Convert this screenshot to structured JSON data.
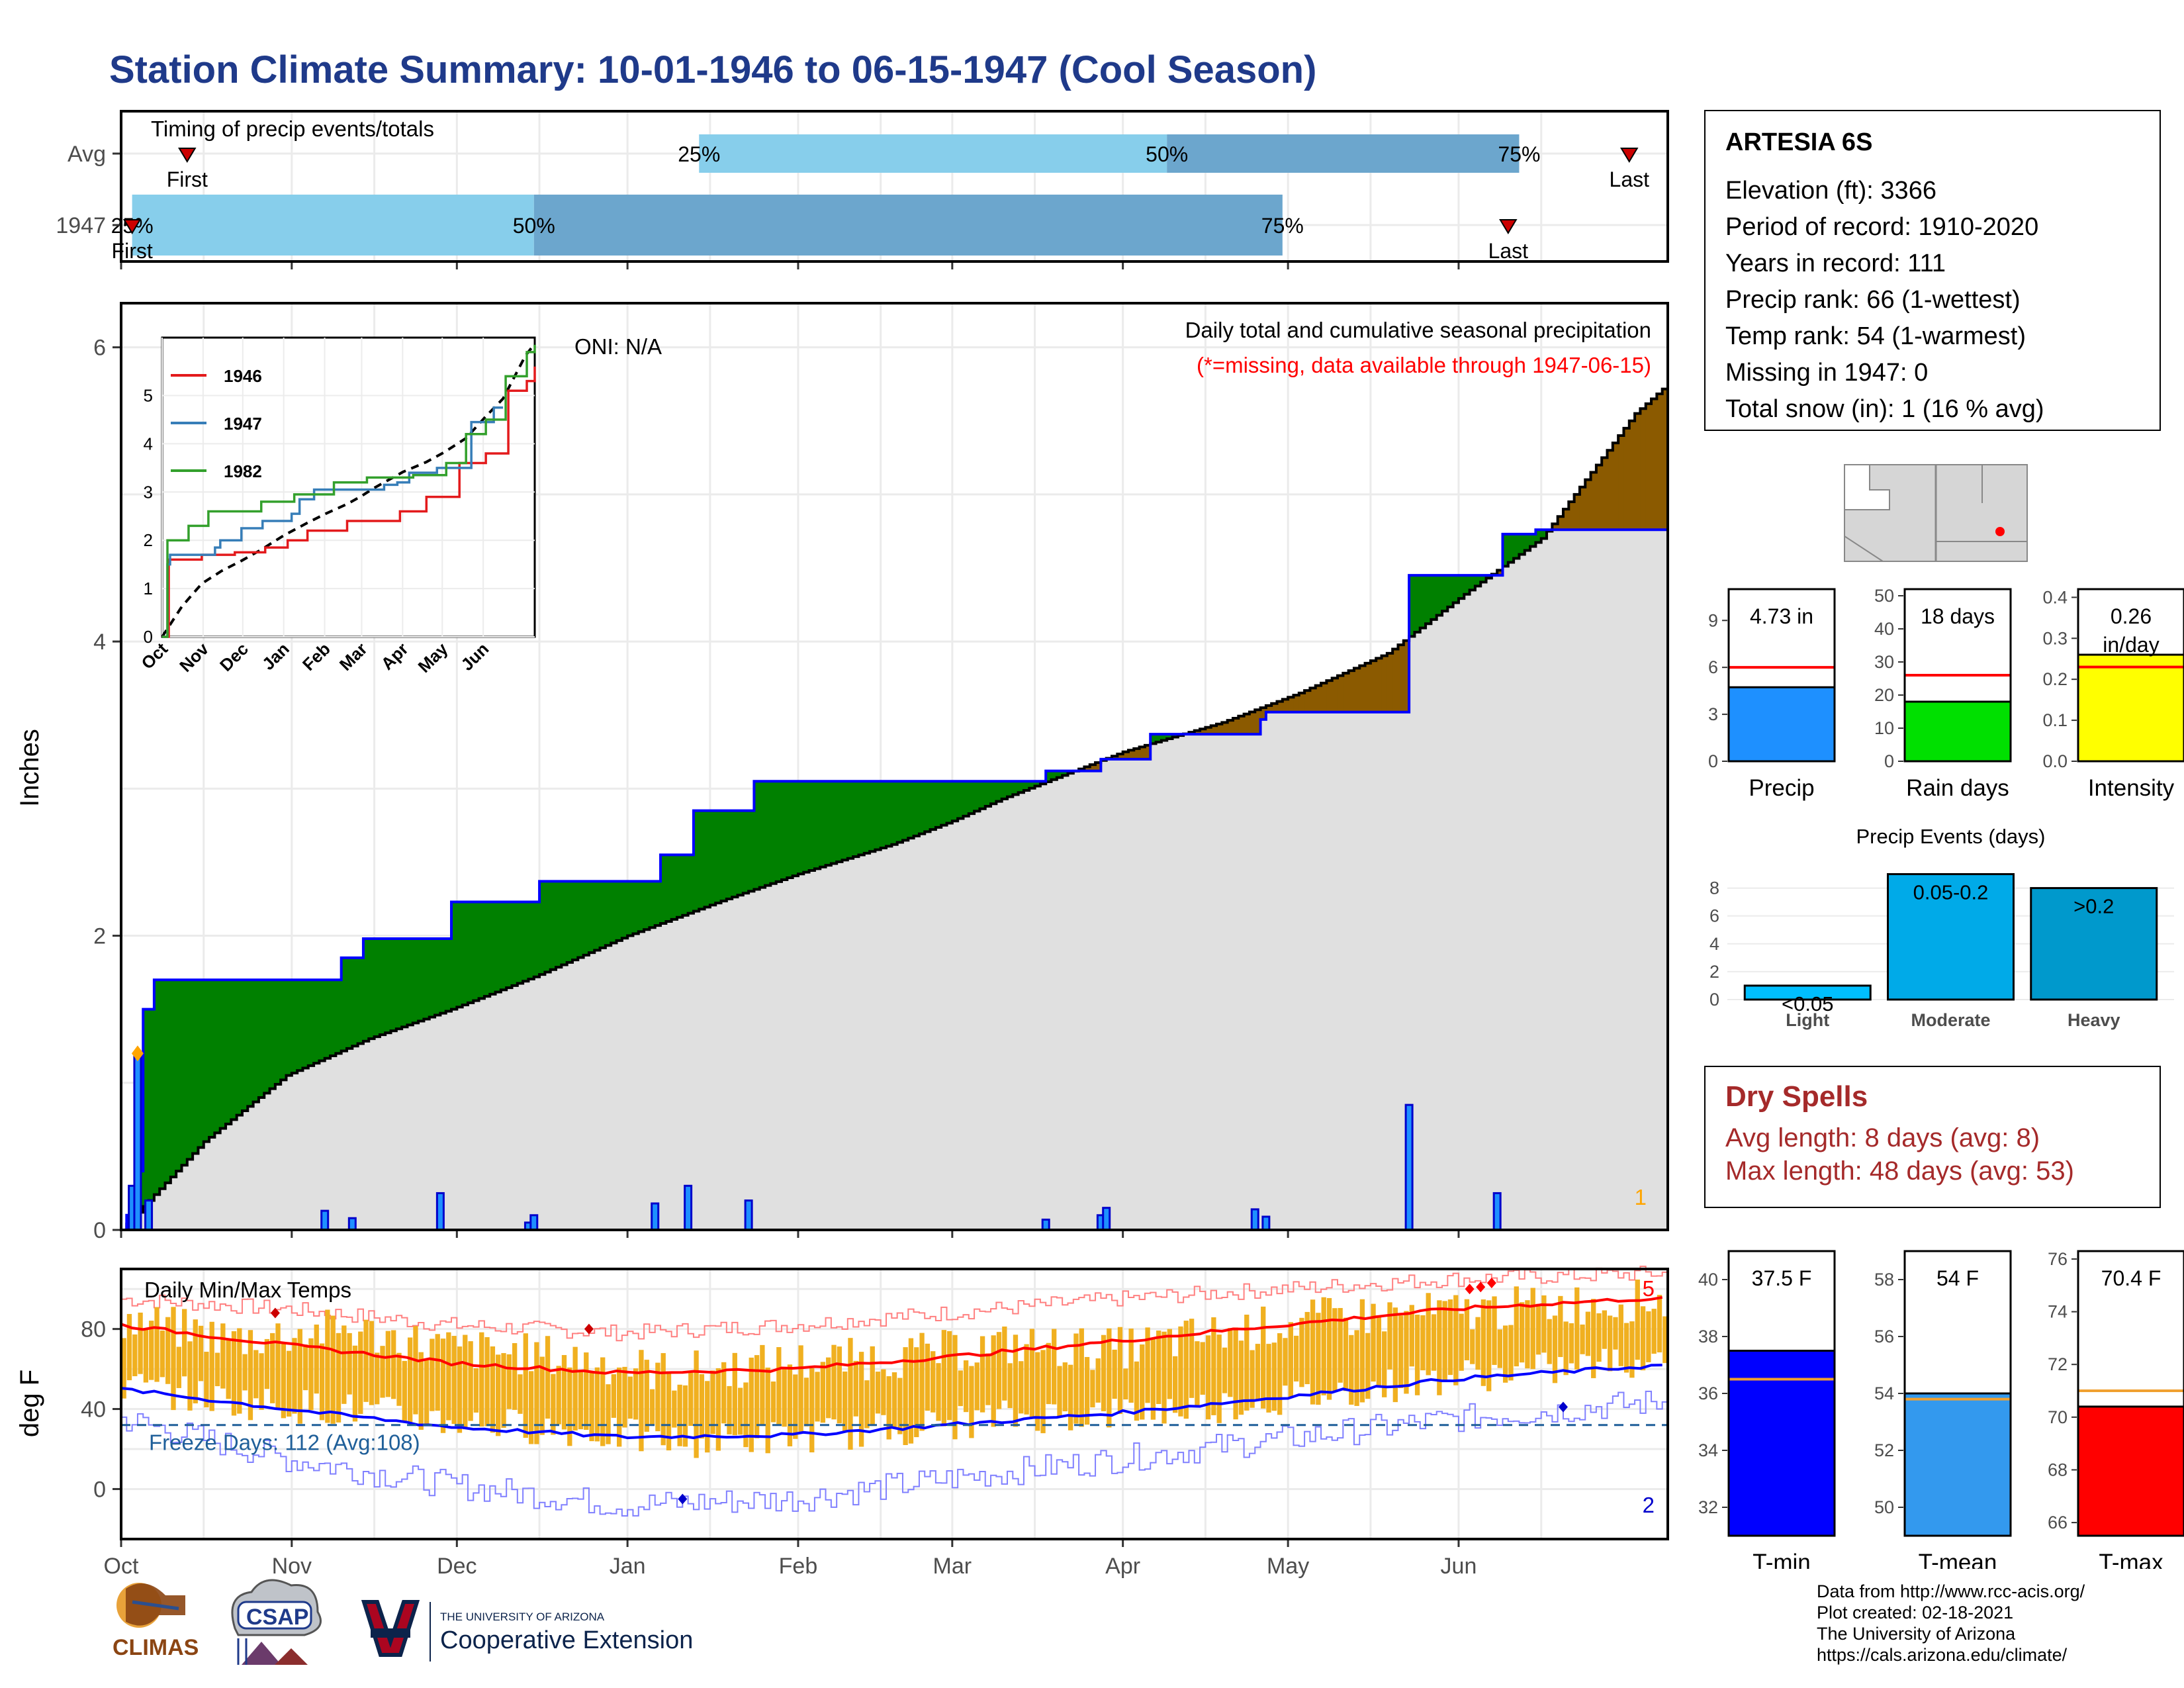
{
  "title": "Station Climate Summary: 10-01-1946 to 06-15-1947 (Cool Season)",
  "colors": {
    "title": "#1f3a8a",
    "accent_red": "#e31a1c",
    "precip_blue": "#1e90ff",
    "rain_green": "#00e000",
    "intensity_yellow": "#ffff00",
    "surplus_green": "#008000",
    "deficit_brown": "#8b5a00",
    "tmin_blue": "#0000ff",
    "tmean_blue": "#3399ee",
    "tmax_red": "#ff0000",
    "range_orange": "#f0b020"
  },
  "station": {
    "name": "ARTESIA 6S",
    "lines": [
      "Elevation (ft): 3366",
      "Period of record: 1910-2020",
      "Years in record: 111",
      "Precip rank: 66 (1-wettest)",
      "Temp rank: 54 (1-warmest)",
      "Missing in 1947: 0",
      "Total snow (in): 1 (16 % avg)"
    ]
  },
  "dry_spells": {
    "heading": "Dry Spells",
    "avg": "Avg length: 8 days (avg: 8)",
    "max": "Max length: 48 days (avg: 53)"
  },
  "credits": [
    "Data from http://www.rcc-acis.org/",
    "Plot created: 02-18-2021",
    "The University of Arizona",
    "https://cals.arizona.edu/climate/"
  ],
  "logos": {
    "climas": "CLIMAS",
    "csap": "CSAP",
    "ua_top": "THE UNIVERSITY OF ARIZONA",
    "ua_bottom": "Cooperative Extension"
  },
  "chart_data": [
    {
      "type": "bar",
      "id": "timing",
      "title": "Timing of precip events/totals",
      "rows": [
        {
          "label": "Avg",
          "p25": "25%",
          "p50": "50%",
          "p75": "75%",
          "first": "First",
          "last": "Last",
          "p25_day": 105,
          "p50_day": 190,
          "p75_day": 254,
          "first_day": 12,
          "last_day": 274
        },
        {
          "label": "1947",
          "p25": "25%",
          "p50": "50%",
          "p75": "75%",
          "first": "First",
          "last": "Last",
          "p25_day": 2,
          "p50_day": 75,
          "p75_day": 211,
          "first_day": 2,
          "last_day": 252
        }
      ]
    },
    {
      "type": "area",
      "id": "precip",
      "ylabel": "Inches",
      "ylim": [
        0,
        6.3
      ],
      "yticks": [
        "0",
        "2",
        "4",
        "6"
      ],
      "xticks": [
        "Oct",
        "Nov",
        "Dec",
        "Jan",
        "Feb",
        "Mar",
        "Apr",
        "May",
        "Jun"
      ],
      "annotation_title": "Daily total and cumulative seasonal precipitation",
      "annotation_missing": "(*=missing, data available through 1947-06-15)",
      "oni": "ONI: N/A",
      "corner_count": "1",
      "observed_cumulative_steps": [
        [
          0,
          0.0
        ],
        [
          1,
          0.1
        ],
        [
          3,
          0.4
        ],
        [
          4,
          1.5
        ],
        [
          6,
          1.7
        ],
        [
          40,
          1.85
        ],
        [
          44,
          1.98
        ],
        [
          60,
          2.23
        ],
        [
          76,
          2.37
        ],
        [
          98,
          2.55
        ],
        [
          104,
          2.85
        ],
        [
          115,
          3.05
        ],
        [
          168,
          3.12
        ],
        [
          178,
          3.2
        ],
        [
          187,
          3.37
        ],
        [
          207,
          3.47
        ],
        [
          208,
          3.52
        ],
        [
          234,
          4.45
        ],
        [
          251,
          4.73
        ],
        [
          257,
          4.76
        ],
        [
          258,
          4.76
        ]
      ],
      "normal_cumulative": [
        [
          0,
          0.0
        ],
        [
          15,
          0.6
        ],
        [
          30,
          1.05
        ],
        [
          45,
          1.3
        ],
        [
          60,
          1.5
        ],
        [
          75,
          1.72
        ],
        [
          92,
          2.0
        ],
        [
          110,
          2.25
        ],
        [
          123,
          2.42
        ],
        [
          140,
          2.62
        ],
        [
          151,
          2.78
        ],
        [
          160,
          2.93
        ],
        [
          182,
          3.25
        ],
        [
          200,
          3.45
        ],
        [
          214,
          3.65
        ],
        [
          230,
          3.92
        ],
        [
          245,
          4.35
        ],
        [
          258,
          4.7
        ],
        [
          275,
          5.55
        ],
        [
          281,
          5.75
        ]
      ],
      "daily_bars": [
        [
          2,
          0.3
        ],
        [
          3,
          1.2
        ],
        [
          5,
          0.2
        ],
        [
          37,
          0.13
        ],
        [
          42,
          0.08
        ],
        [
          58,
          0.25
        ],
        [
          74,
          0.05
        ],
        [
          75,
          0.1
        ],
        [
          97,
          0.18
        ],
        [
          103,
          0.3
        ],
        [
          114,
          0.2
        ],
        [
          168,
          0.07
        ],
        [
          178,
          0.1
        ],
        [
          179,
          0.15
        ],
        [
          206,
          0.14
        ],
        [
          208,
          0.09
        ],
        [
          234,
          0.85
        ],
        [
          250,
          0.25
        ]
      ],
      "inset": {
        "yticks": [
          "0",
          "1",
          "2",
          "3",
          "4",
          "5"
        ],
        "xticks": [
          "Oct",
          "Nov",
          "Dec",
          "Jan",
          "Feb",
          "Mar",
          "Apr",
          "May",
          "Jun"
        ],
        "series": [
          {
            "name": "1946",
            "color": "#e31a1c",
            "values": [
              [
                0,
                0
              ],
              [
                5,
                1.6
              ],
              [
                30,
                1.7
              ],
              [
                55,
                1.75
              ],
              [
                78,
                1.85
              ],
              [
                95,
                2.0
              ],
              [
                110,
                2.2
              ],
              [
                140,
                2.4
              ],
              [
                165,
                2.4
              ],
              [
                180,
                2.6
              ],
              [
                200,
                2.9
              ],
              [
                225,
                3.6
              ],
              [
                245,
                3.8
              ],
              [
                262,
                5.1
              ],
              [
                276,
                5.3
              ],
              [
                282,
                5.6
              ]
            ]
          },
          {
            "name": "1947",
            "color": "#377eb8",
            "values": [
              [
                0,
                0
              ],
              [
                4,
                1.5
              ],
              [
                6,
                1.7
              ],
              [
                40,
                1.85
              ],
              [
                44,
                2.0
              ],
              [
                60,
                2.25
              ],
              [
                76,
                2.4
              ],
              [
                98,
                2.55
              ],
              [
                104,
                2.85
              ],
              [
                115,
                3.05
              ],
              [
                168,
                3.15
              ],
              [
                178,
                3.2
              ],
              [
                187,
                3.4
              ],
              [
                208,
                3.5
              ],
              [
                234,
                4.45
              ],
              [
                251,
                4.75
              ],
              [
                258,
                4.75
              ]
            ]
          },
          {
            "name": "1982",
            "color": "#33a02c",
            "values": [
              [
                0,
                0
              ],
              [
                4,
                2.0
              ],
              [
                20,
                2.3
              ],
              [
                35,
                2.6
              ],
              [
                75,
                2.8
              ],
              [
                100,
                2.95
              ],
              [
                130,
                3.2
              ],
              [
                155,
                3.3
              ],
              [
                190,
                3.35
              ],
              [
                215,
                3.6
              ],
              [
                230,
                4.2
              ],
              [
                245,
                4.5
              ],
              [
                260,
                5.4
              ],
              [
                276,
                5.9
              ],
              [
                282,
                6.05
              ]
            ]
          }
        ]
      }
    },
    {
      "type": "line",
      "id": "temps",
      "title": "Daily Min/Max Temps",
      "ylabel": "deg F",
      "ylim": [
        -25,
        110
      ],
      "yticks": [
        "0",
        "40",
        "80"
      ],
      "xticks": [
        "Oct",
        "Nov",
        "Dec",
        "Jan",
        "Feb",
        "Mar",
        "Apr",
        "May",
        "Jun"
      ],
      "freeze_text": "Freeze Days: 112 (Avg:108)",
      "freeze_line": 32,
      "count_high": "5",
      "count_low": "2",
      "normal_max": [
        [
          0,
          82
        ],
        [
          30,
          72
        ],
        [
          60,
          63
        ],
        [
          91,
          58
        ],
        [
          122,
          60
        ],
        [
          150,
          66
        ],
        [
          181,
          74
        ],
        [
          211,
          82
        ],
        [
          242,
          90
        ],
        [
          275,
          95
        ],
        [
          281,
          95
        ]
      ],
      "normal_min": [
        [
          0,
          50
        ],
        [
          30,
          40
        ],
        [
          60,
          31
        ],
        [
          91,
          26
        ],
        [
          122,
          27
        ],
        [
          150,
          32
        ],
        [
          181,
          38
        ],
        [
          211,
          46
        ],
        [
          242,
          55
        ],
        [
          275,
          61
        ],
        [
          281,
          62
        ]
      ],
      "record_max": [
        [
          0,
          95
        ],
        [
          30,
          90
        ],
        [
          60,
          82
        ],
        [
          91,
          78
        ],
        [
          122,
          82
        ],
        [
          150,
          88
        ],
        [
          181,
          95
        ],
        [
          211,
          100
        ],
        [
          242,
          105
        ],
        [
          281,
          108
        ]
      ],
      "record_min": [
        [
          0,
          35
        ],
        [
          30,
          15
        ],
        [
          60,
          2
        ],
        [
          91,
          -8
        ],
        [
          122,
          -5
        ],
        [
          150,
          5
        ],
        [
          181,
          15
        ],
        [
          211,
          25
        ],
        [
          242,
          35
        ],
        [
          281,
          44
        ]
      ],
      "obs_max_anchor": [
        [
          0,
          85
        ],
        [
          20,
          75
        ],
        [
          40,
          80
        ],
        [
          60,
          70
        ],
        [
          80,
          66
        ],
        [
          100,
          58
        ],
        [
          120,
          63
        ],
        [
          140,
          66
        ],
        [
          160,
          72
        ],
        [
          180,
          70
        ],
        [
          200,
          78
        ],
        [
          220,
          86
        ],
        [
          240,
          88
        ],
        [
          260,
          92
        ],
        [
          281,
          95
        ]
      ],
      "obs_min_anchor": [
        [
          0,
          52
        ],
        [
          20,
          44
        ],
        [
          40,
          40
        ],
        [
          60,
          34
        ],
        [
          80,
          30
        ],
        [
          100,
          24
        ],
        [
          120,
          26
        ],
        [
          140,
          30
        ],
        [
          160,
          36
        ],
        [
          180,
          38
        ],
        [
          200,
          42
        ],
        [
          220,
          48
        ],
        [
          240,
          56
        ],
        [
          260,
          60
        ],
        [
          281,
          66
        ]
      ]
    },
    {
      "type": "bar",
      "id": "precip_summary",
      "panels": [
        {
          "label": "Precip",
          "value": 4.73,
          "value_label": "4.73 in",
          "avg": 6.0,
          "color": "#1e90ff",
          "yticks": [
            "0",
            "3",
            "6",
            "9"
          ],
          "ymax": 11
        },
        {
          "label": "Rain days",
          "value": 18,
          "value_label": "18 days",
          "avg": 26,
          "color": "#00e000",
          "yticks": [
            "0",
            "10",
            "20",
            "30",
            "40",
            "50"
          ],
          "ymax": 52
        },
        {
          "label": "Intensity",
          "value": 0.26,
          "value_label": "0.26",
          "value_label2": "in/day",
          "avg": 0.23,
          "color": "#ffff00",
          "yticks": [
            "0.0",
            "0.1",
            "0.2",
            "0.3",
            "0.4"
          ],
          "ymax": 0.42
        }
      ]
    },
    {
      "type": "bar",
      "id": "precip_events",
      "title": "Precip Events (days)",
      "categories": [
        "Light",
        "Moderate",
        "Heavy"
      ],
      "bar_labels": [
        "<0.05",
        "0.05-0.2",
        ">0.2"
      ],
      "values": [
        1,
        9,
        8
      ],
      "colors": [
        "#00bfff",
        "#00aae8",
        "#0099cc"
      ],
      "yticks": [
        "0",
        "2",
        "4",
        "6",
        "8"
      ],
      "ymax": 9.5
    },
    {
      "type": "bar",
      "id": "temp_summary",
      "panels": [
        {
          "label": "T-min",
          "value": 37.5,
          "value_label": "37.5 F",
          "avg": 36.5,
          "color": "#0000ff",
          "ymin": 31,
          "ymax": 41,
          "yticks": [
            "32",
            "34",
            "36",
            "38",
            "40"
          ]
        },
        {
          "label": "T-mean",
          "value": 54.0,
          "value_label": "54 F",
          "avg": 53.8,
          "color": "#3399ee",
          "ymin": 49,
          "ymax": 59,
          "yticks": [
            "50",
            "52",
            "54",
            "56",
            "58"
          ]
        },
        {
          "label": "T-max",
          "value": 70.4,
          "value_label": "70.4 F",
          "avg": 71.0,
          "color": "#ff0000",
          "ymin": 65.5,
          "ymax": 76.3,
          "yticks": [
            "66",
            "68",
            "70",
            "72",
            "74",
            "76"
          ]
        }
      ]
    }
  ]
}
